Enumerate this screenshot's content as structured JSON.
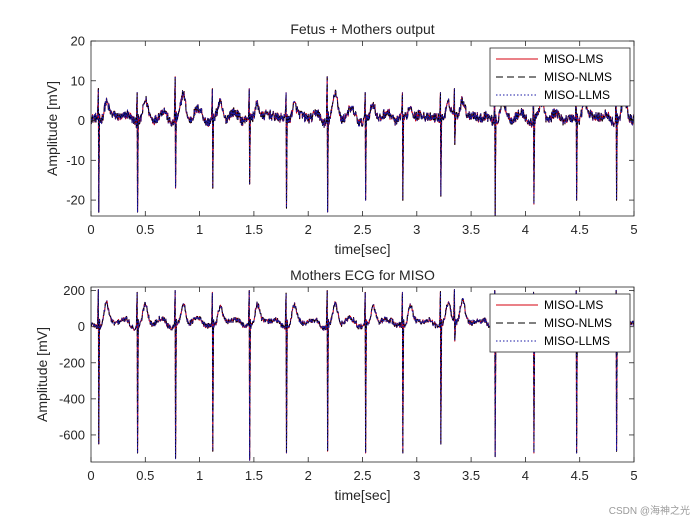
{
  "watermark": "CSDN @海神之光",
  "chart_data": [
    {
      "type": "line",
      "title": "Fetus + Mothers output",
      "xlabel": "time[sec]",
      "ylabel": "Amplitude [mV]",
      "xlim": [
        0,
        5
      ],
      "ylim": [
        -24,
        20
      ],
      "xticks": [
        0,
        0.5,
        1,
        1.5,
        2,
        2.5,
        3,
        3.5,
        4,
        4.5,
        5
      ],
      "xtick_labels": [
        "0",
        "0.5",
        "1",
        "1.5",
        "2",
        "2.5",
        "3",
        "3.5",
        "4",
        "4.5",
        "5"
      ],
      "yticks": [
        -20,
        -10,
        0,
        10,
        20
      ],
      "ytick_labels": [
        "-20",
        "-10",
        "0",
        "10",
        "20"
      ],
      "legend_position": "top-right",
      "series": [
        {
          "name": "MISO-LMS",
          "color": "#d4000f",
          "style": "solid"
        },
        {
          "name": "MISO-NLMS",
          "color": "#000000",
          "style": "dashed"
        },
        {
          "name": "MISO-LLMS",
          "color": "#1a1aa6",
          "style": "dotted"
        }
      ],
      "baseline": 0,
      "noise": 1.2,
      "beats": [
        {
          "t": 0.07,
          "peak": 8,
          "trough": -23
        },
        {
          "t": 0.43,
          "peak": 7,
          "trough": -23
        },
        {
          "t": 0.78,
          "peak": 11,
          "trough": -17
        },
        {
          "t": 1.12,
          "peak": 8,
          "trough": -17
        },
        {
          "t": 1.46,
          "peak": 8,
          "trough": -16
        },
        {
          "t": 1.8,
          "peak": 7,
          "trough": -22
        },
        {
          "t": 2.18,
          "peak": 11,
          "trough": -23
        },
        {
          "t": 2.53,
          "peak": 7,
          "trough": -20
        },
        {
          "t": 2.87,
          "peak": 7,
          "trough": -20
        },
        {
          "t": 3.22,
          "peak": 7,
          "trough": -19
        },
        {
          "t": 3.35,
          "peak": 8,
          "trough": -6
        },
        {
          "t": 3.72,
          "peak": 7,
          "trough": -24
        },
        {
          "t": 4.08,
          "peak": 7,
          "trough": -21
        },
        {
          "t": 4.47,
          "peak": 8,
          "trough": -20
        },
        {
          "t": 4.84,
          "peak": 8,
          "trough": -20
        }
      ]
    },
    {
      "type": "line",
      "title": "Mothers ECG for MISO",
      "xlabel": "time[sec]",
      "ylabel": "Amplitude [mV]",
      "xlim": [
        0,
        5
      ],
      "ylim": [
        -750,
        220
      ],
      "xticks": [
        0,
        0.5,
        1,
        1.5,
        2,
        2.5,
        3,
        3.5,
        4,
        4.5,
        5
      ],
      "xtick_labels": [
        "0",
        "0.5",
        "1",
        "1.5",
        "2",
        "2.5",
        "3",
        "3.5",
        "4",
        "4.5",
        "5"
      ],
      "yticks": [
        -600,
        -400,
        -200,
        0,
        200
      ],
      "ytick_labels": [
        "-600",
        "-400",
        "-200",
        "0",
        "200"
      ],
      "legend_position": "top-right",
      "series": [
        {
          "name": "MISO-LMS",
          "color": "#d4000f",
          "style": "solid"
        },
        {
          "name": "MISO-NLMS",
          "color": "#000000",
          "style": "dashed"
        },
        {
          "name": "MISO-LLMS",
          "color": "#1a1aa6",
          "style": "dotted"
        }
      ],
      "baseline": 0,
      "noise": 15,
      "beats": [
        {
          "t": 0.07,
          "peak": 205,
          "trough": -650
        },
        {
          "t": 0.43,
          "peak": 190,
          "trough": -700
        },
        {
          "t": 0.78,
          "peak": 200,
          "trough": -730
        },
        {
          "t": 1.12,
          "peak": 190,
          "trough": -690
        },
        {
          "t": 1.46,
          "peak": 200,
          "trough": -740
        },
        {
          "t": 1.8,
          "peak": 185,
          "trough": -700
        },
        {
          "t": 2.18,
          "peak": 200,
          "trough": -690
        },
        {
          "t": 2.53,
          "peak": 190,
          "trough": -700
        },
        {
          "t": 2.87,
          "peak": 190,
          "trough": -700
        },
        {
          "t": 3.22,
          "peak": 195,
          "trough": -650
        },
        {
          "t": 3.35,
          "peak": 205,
          "trough": -80
        },
        {
          "t": 3.72,
          "peak": 200,
          "trough": -720
        },
        {
          "t": 4.08,
          "peak": 190,
          "trough": -700
        },
        {
          "t": 4.47,
          "peak": 200,
          "trough": -700
        },
        {
          "t": 4.84,
          "peak": 200,
          "trough": -690
        }
      ]
    }
  ]
}
